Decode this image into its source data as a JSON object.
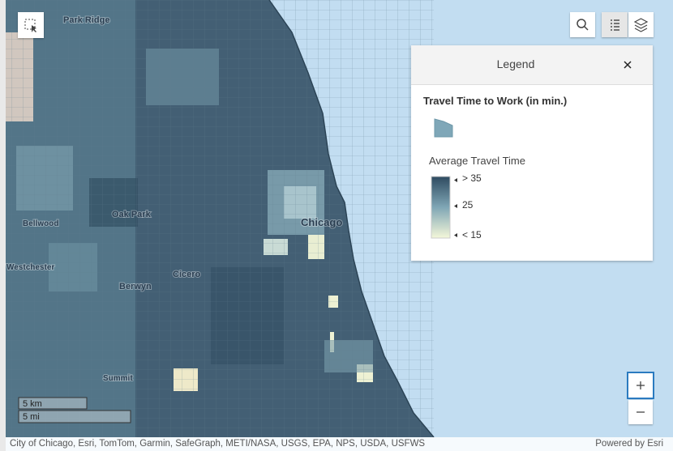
{
  "map": {
    "labels": [
      "Park Ridge",
      "Oak Park",
      "Bellwood",
      "Westchester",
      "Berwyn",
      "Cicero",
      "Chicago",
      "Summit"
    ]
  },
  "legend": {
    "header": "Legend",
    "layer_title": "Travel Time to Work (in min.)",
    "field_title": "Average Travel Time",
    "ramp_labels": [
      "> 35",
      "25",
      "< 15"
    ]
  },
  "scale": [
    "5 km",
    "5 mi"
  ],
  "attribution": "City of Chicago, Esri, TomTom, Garmin, SafeGraph, METI/NASA, USGS, EPA, NPS, USDA, USFWS",
  "powered_by": "Powered by Esri"
}
